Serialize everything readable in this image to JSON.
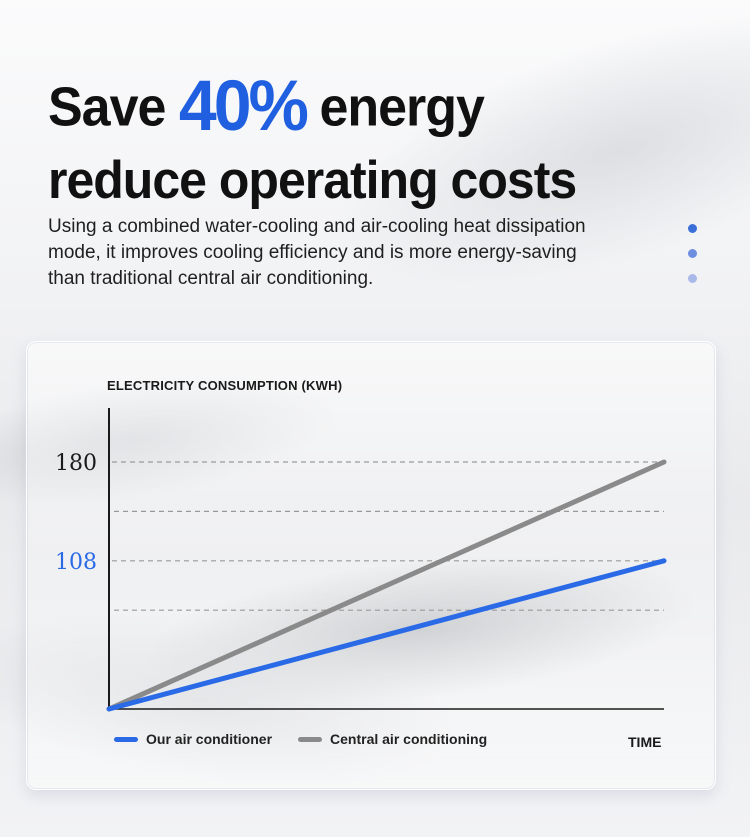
{
  "headline": {
    "line1_before": "Save ",
    "line1_accent": "40%",
    "line1_after": " energy",
    "line2": "reduce operating costs"
  },
  "subtext": "Using a combined water-cooling and air-cooling heat dissipation mode, it improves cooling efficiency and is more energy-saving than traditional central air conditioning.",
  "colors": {
    "accent": "#1f5fe0",
    "our_line": "#2a6ae6",
    "central_line": "#8a8a8a",
    "dot1": "#3b6fd8",
    "dot2": "#6e8ee0",
    "dot3": "#aab9ea"
  },
  "chart_data": {
    "type": "line",
    "ylabel": "ELECTRICITY CONSUMPTION (KWH)",
    "xlabel": "TIME",
    "ylim": [
      0,
      200
    ],
    "y_ticks": [
      {
        "value": 180,
        "label": "180",
        "color": "#1a1a1a"
      },
      {
        "value": 108,
        "label": "108",
        "color": "#2a6ae6"
      }
    ],
    "gridlines": [
      180,
      144,
      108,
      72
    ],
    "grid": true,
    "legend_position": "bottom",
    "series": [
      {
        "name": "Our air conditioner",
        "x": [
          0,
          1
        ],
        "y": [
          0,
          108
        ],
        "color": "#2a6ae6"
      },
      {
        "name": "Central air conditioning",
        "x": [
          0,
          1
        ],
        "y": [
          0,
          180
        ],
        "color": "#8a8a8a"
      }
    ]
  }
}
